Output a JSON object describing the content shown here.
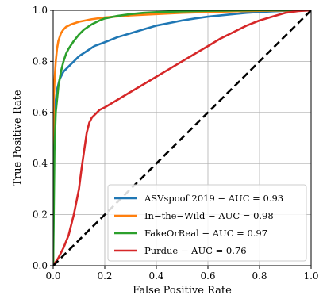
{
  "chart_data": {
    "type": "line",
    "title": "",
    "xlabel": "False Positive Rate",
    "ylabel": "True Positive Rate",
    "xlim": [
      0.0,
      1.0
    ],
    "ylim": [
      0.0,
      1.0
    ],
    "x_ticks": [
      "0.0",
      "0.2",
      "0.4",
      "0.6",
      "0.8",
      "1.0"
    ],
    "y_ticks": [
      "0.0",
      "0.2",
      "0.4",
      "0.6",
      "0.8",
      "1.0"
    ],
    "grid": true,
    "legend_position": "lower-right",
    "series": [
      {
        "name": "ASVspoof 2019 − AUC = 0.93",
        "color": "#1f77b4",
        "x": [
          0,
          0.003,
          0.008,
          0.015,
          0.025,
          0.04,
          0.06,
          0.08,
          0.1,
          0.13,
          0.16,
          0.2,
          0.25,
          0.3,
          0.35,
          0.4,
          0.45,
          0.5,
          0.55,
          0.6,
          0.65,
          0.7,
          0.75,
          0.8,
          0.85,
          0.9,
          0.95,
          1.0
        ],
        "y": [
          0,
          0.52,
          0.63,
          0.69,
          0.73,
          0.76,
          0.78,
          0.8,
          0.82,
          0.84,
          0.86,
          0.875,
          0.895,
          0.91,
          0.925,
          0.94,
          0.95,
          0.96,
          0.968,
          0.975,
          0.98,
          0.985,
          0.99,
          0.993,
          0.996,
          0.998,
          0.999,
          1.0
        ]
      },
      {
        "name": "In−the−Wild − AUC = 0.98",
        "color": "#ff7f0e",
        "x": [
          0,
          0.002,
          0.005,
          0.01,
          0.015,
          0.02,
          0.03,
          0.04,
          0.05,
          0.07,
          0.1,
          0.15,
          0.2,
          0.3,
          0.4,
          0.5,
          0.6,
          0.7,
          0.8,
          0.9,
          1.0
        ],
        "y": [
          0,
          0.65,
          0.72,
          0.8,
          0.85,
          0.88,
          0.91,
          0.925,
          0.935,
          0.945,
          0.955,
          0.965,
          0.972,
          0.98,
          0.985,
          0.99,
          0.993,
          0.996,
          0.998,
          0.999,
          1.0
        ]
      },
      {
        "name": "FakeOrReal − AUC = 0.97",
        "color": "#2ca02c",
        "x": [
          0,
          0.005,
          0.01,
          0.02,
          0.03,
          0.04,
          0.05,
          0.06,
          0.08,
          0.1,
          0.12,
          0.15,
          0.18,
          0.2,
          0.25,
          0.3,
          0.35,
          0.4,
          0.5,
          0.6,
          0.7,
          0.8,
          0.9,
          1.0
        ],
        "y": [
          0,
          0.45,
          0.6,
          0.7,
          0.76,
          0.8,
          0.83,
          0.85,
          0.88,
          0.905,
          0.925,
          0.945,
          0.96,
          0.968,
          0.978,
          0.985,
          0.99,
          0.993,
          0.996,
          0.998,
          0.999,
          1.0,
          1.0,
          1.0
        ]
      },
      {
        "name": "Purdue − AUC = 0.76",
        "color": "#d62728",
        "x": [
          0,
          0.02,
          0.04,
          0.06,
          0.08,
          0.1,
          0.11,
          0.12,
          0.13,
          0.14,
          0.15,
          0.16,
          0.18,
          0.2,
          0.25,
          0.3,
          0.35,
          0.4,
          0.45,
          0.5,
          0.55,
          0.6,
          0.65,
          0.7,
          0.75,
          0.8,
          0.85,
          0.9,
          0.95,
          1.0
        ],
        "y": [
          0,
          0.03,
          0.07,
          0.12,
          0.2,
          0.3,
          0.38,
          0.45,
          0.52,
          0.56,
          0.58,
          0.59,
          0.61,
          0.62,
          0.65,
          0.68,
          0.71,
          0.74,
          0.77,
          0.8,
          0.83,
          0.86,
          0.89,
          0.915,
          0.94,
          0.96,
          0.975,
          0.99,
          0.997,
          1.0
        ]
      }
    ],
    "reference_line": {
      "style": "dashed",
      "color": "#000000",
      "x": [
        0,
        1
      ],
      "y": [
        0,
        1
      ]
    }
  }
}
